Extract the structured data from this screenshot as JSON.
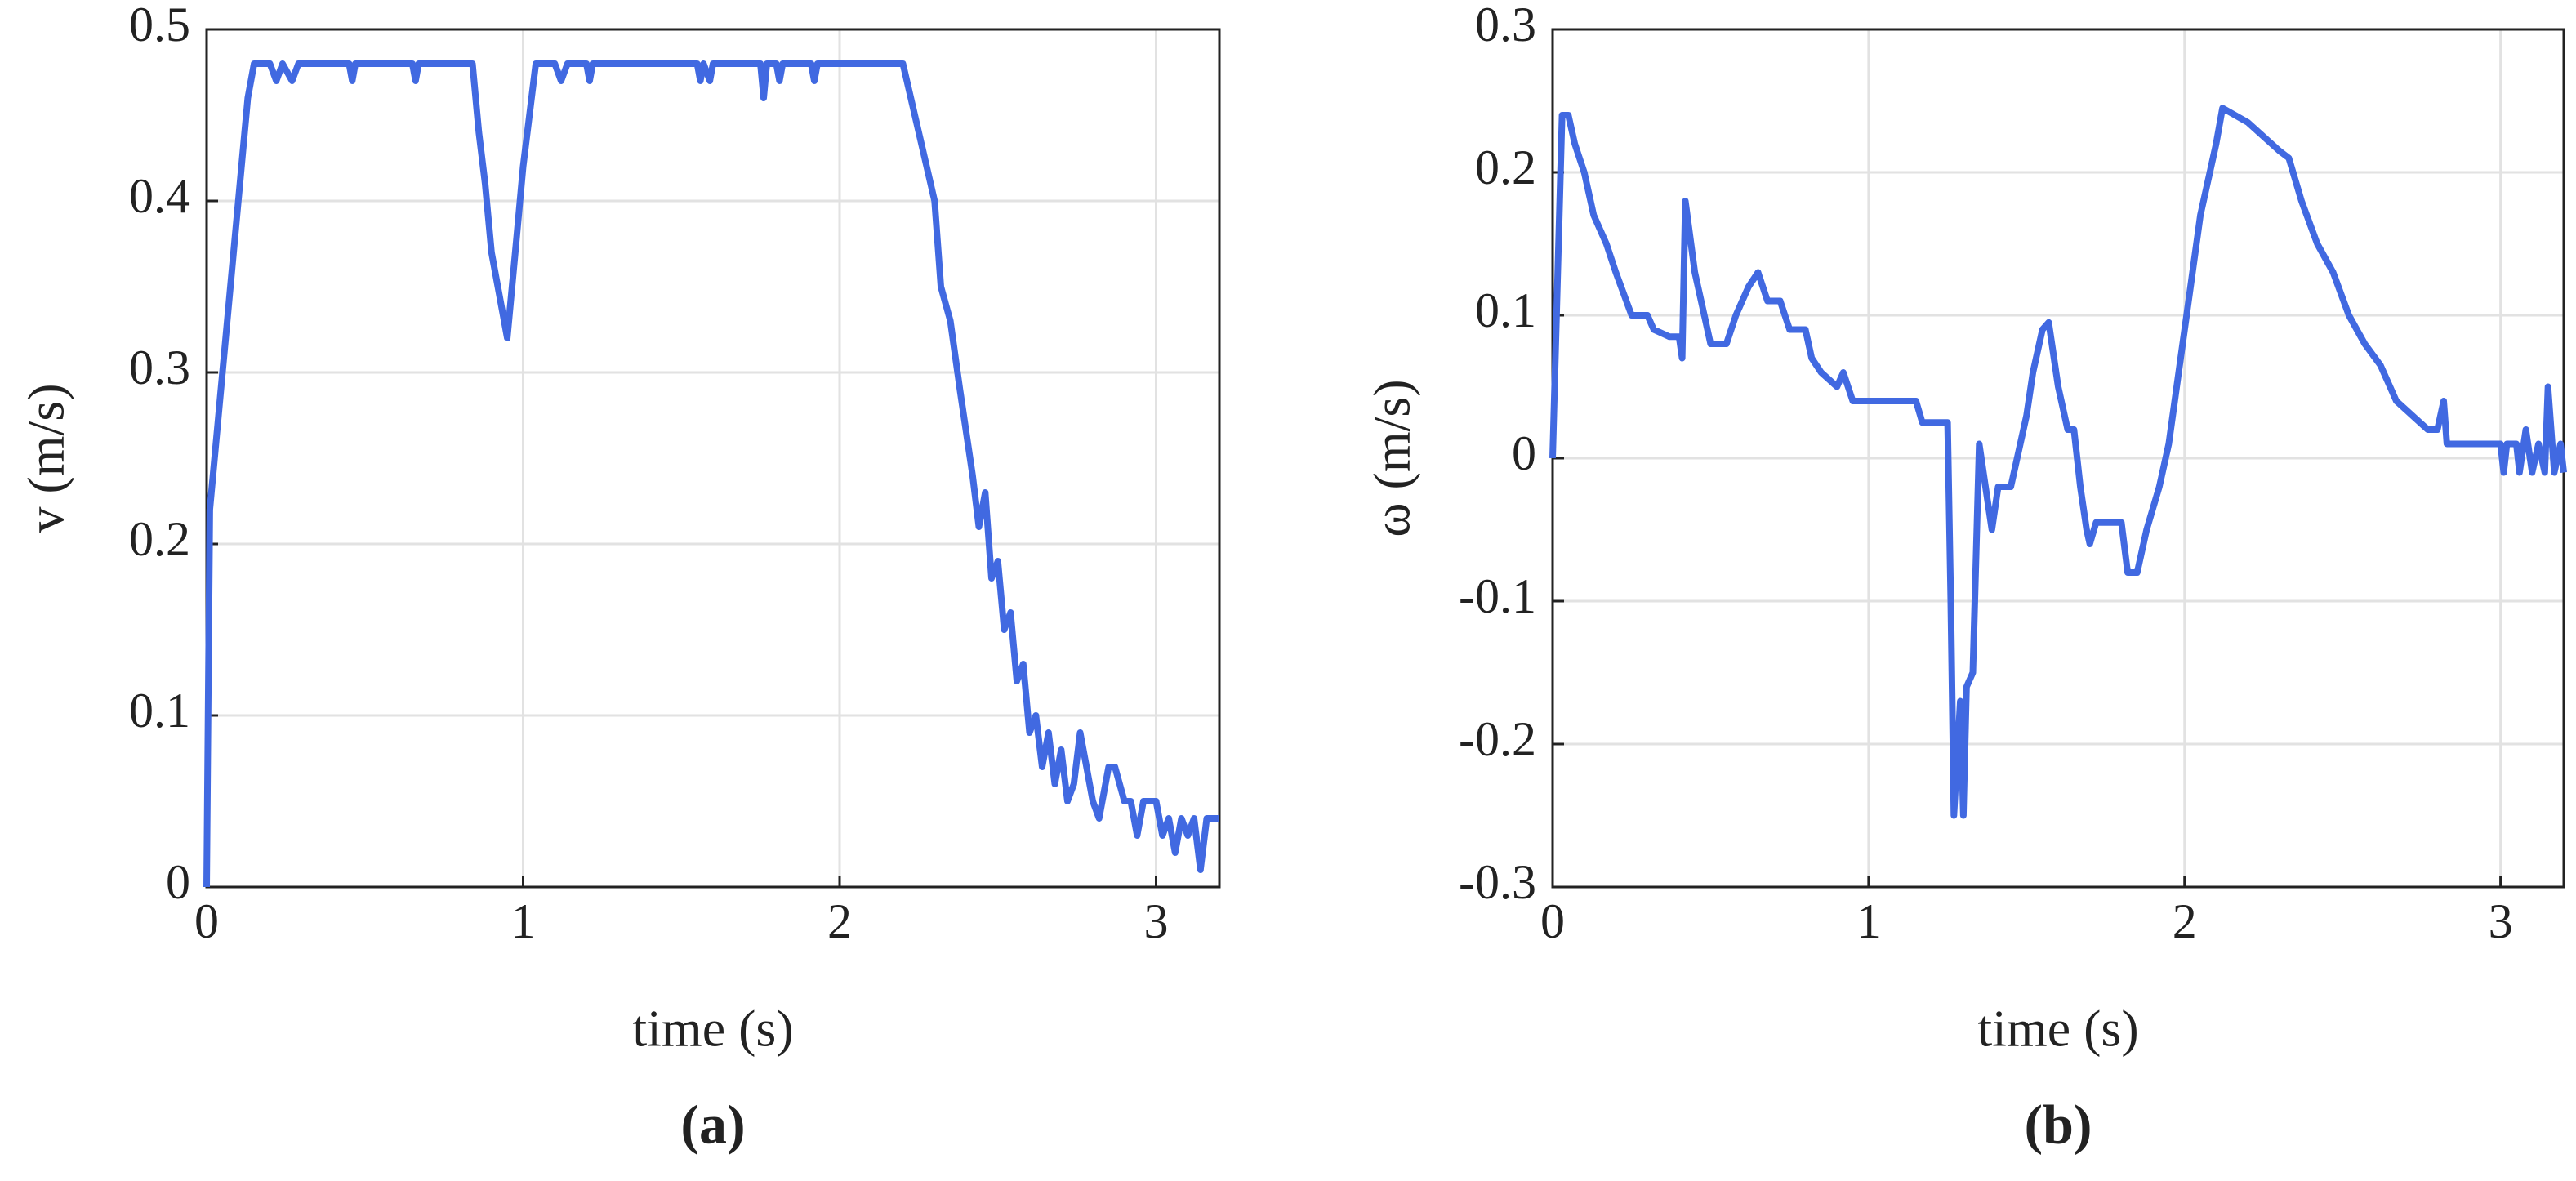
{
  "chart_data": [
    {
      "type": "line",
      "label": "(a)",
      "x_label": "time (s)",
      "y_label": "v (m/s)",
      "xlim": [
        0,
        3.2
      ],
      "ylim": [
        0,
        0.5
      ],
      "xticks": [
        0,
        1,
        2,
        3
      ],
      "yticks": [
        0,
        0.1,
        0.2,
        0.3,
        0.4,
        0.5
      ],
      "grid": true,
      "color": "#4169e1",
      "x": [
        0,
        0.01,
        0.05,
        0.1,
        0.13,
        0.15,
        0.2,
        0.22,
        0.24,
        0.27,
        0.29,
        0.45,
        0.46,
        0.47,
        0.65,
        0.66,
        0.67,
        0.84,
        0.86,
        0.88,
        0.9,
        0.93,
        0.95,
        0.98,
        1.0,
        1.04,
        1.1,
        1.12,
        1.14,
        1.2,
        1.21,
        1.22,
        1.55,
        1.56,
        1.57,
        1.59,
        1.6,
        1.75,
        1.76,
        1.77,
        1.8,
        1.81,
        1.82,
        1.91,
        1.92,
        1.93,
        2.2,
        2.25,
        2.3,
        2.32,
        2.35,
        2.38,
        2.42,
        2.44,
        2.46,
        2.48,
        2.5,
        2.52,
        2.54,
        2.56,
        2.58,
        2.6,
        2.62,
        2.64,
        2.66,
        2.68,
        2.7,
        2.72,
        2.74,
        2.76,
        2.78,
        2.8,
        2.82,
        2.85,
        2.87,
        2.9,
        2.92,
        2.94,
        2.96,
        3.0,
        3.02,
        3.04,
        3.06,
        3.08,
        3.1,
        3.12,
        3.14,
        3.16,
        3.2
      ],
      "values": [
        0,
        0.22,
        0.3,
        0.4,
        0.46,
        0.48,
        0.48,
        0.47,
        0.48,
        0.47,
        0.48,
        0.48,
        0.47,
        0.48,
        0.48,
        0.47,
        0.48,
        0.48,
        0.44,
        0.41,
        0.37,
        0.34,
        0.32,
        0.38,
        0.42,
        0.48,
        0.48,
        0.47,
        0.48,
        0.48,
        0.47,
        0.48,
        0.48,
        0.47,
        0.48,
        0.47,
        0.48,
        0.48,
        0.46,
        0.48,
        0.48,
        0.47,
        0.48,
        0.48,
        0.47,
        0.48,
        0.48,
        0.44,
        0.4,
        0.35,
        0.33,
        0.29,
        0.24,
        0.21,
        0.23,
        0.18,
        0.19,
        0.15,
        0.16,
        0.12,
        0.13,
        0.09,
        0.1,
        0.07,
        0.09,
        0.06,
        0.08,
        0.05,
        0.06,
        0.09,
        0.07,
        0.05,
        0.04,
        0.07,
        0.07,
        0.05,
        0.05,
        0.03,
        0.05,
        0.05,
        0.03,
        0.04,
        0.02,
        0.04,
        0.03,
        0.04,
        0.01,
        0.04,
        0.04
      ]
    },
    {
      "type": "line",
      "label": "(b)",
      "x_label": "time (s)",
      "y_label": "ω (m/s)",
      "xlim": [
        0,
        3.2
      ],
      "ylim": [
        -0.3,
        0.3
      ],
      "xticks": [
        0,
        1,
        2,
        3
      ],
      "yticks": [
        -0.3,
        -0.2,
        -0.1,
        0,
        0.1,
        0.2,
        0.3
      ],
      "grid": true,
      "color": "#4169e1",
      "x": [
        0,
        0.03,
        0.05,
        0.07,
        0.1,
        0.13,
        0.17,
        0.2,
        0.25,
        0.3,
        0.32,
        0.37,
        0.4,
        0.41,
        0.42,
        0.45,
        0.48,
        0.5,
        0.55,
        0.58,
        0.62,
        0.65,
        0.68,
        0.72,
        0.75,
        0.8,
        0.82,
        0.85,
        0.9,
        0.92,
        0.95,
        1.15,
        1.17,
        1.25,
        1.26,
        1.27,
        1.29,
        1.3,
        1.31,
        1.33,
        1.35,
        1.37,
        1.39,
        1.41,
        1.45,
        1.48,
        1.5,
        1.52,
        1.55,
        1.57,
        1.6,
        1.63,
        1.65,
        1.67,
        1.69,
        1.7,
        1.72,
        1.8,
        1.82,
        1.85,
        1.88,
        1.92,
        1.95,
        2.0,
        2.05,
        2.08,
        2.1,
        2.12,
        2.2,
        2.3,
        2.33,
        2.37,
        2.42,
        2.47,
        2.52,
        2.57,
        2.62,
        2.67,
        2.72,
        2.77,
        2.8,
        2.82,
        2.83,
        3.0,
        3.01,
        3.02,
        3.05,
        3.06,
        3.08,
        3.1,
        3.12,
        3.14,
        3.15,
        3.17,
        3.19,
        3.2
      ],
      "values": [
        0,
        0.24,
        0.24,
        0.22,
        0.2,
        0.17,
        0.15,
        0.13,
        0.1,
        0.1,
        0.09,
        0.085,
        0.085,
        0.07,
        0.18,
        0.13,
        0.1,
        0.08,
        0.08,
        0.1,
        0.12,
        0.13,
        0.11,
        0.11,
        0.09,
        0.09,
        0.07,
        0.06,
        0.05,
        0.06,
        0.04,
        0.04,
        0.025,
        0.025,
        -0.1,
        -0.25,
        -0.17,
        -0.25,
        -0.16,
        -0.15,
        0.01,
        -0.02,
        -0.05,
        -0.02,
        -0.02,
        0.01,
        0.03,
        0.06,
        0.09,
        0.095,
        0.05,
        0.02,
        0.02,
        -0.02,
        -0.05,
        -0.06,
        -0.045,
        -0.045,
        -0.08,
        -0.08,
        -0.05,
        -0.02,
        0.01,
        0.09,
        0.17,
        0.2,
        0.22,
        0.245,
        0.235,
        0.215,
        0.21,
        0.18,
        0.15,
        0.13,
        0.1,
        0.08,
        0.065,
        0.04,
        0.03,
        0.02,
        0.02,
        0.04,
        0.01,
        0.01,
        -0.01,
        0.01,
        0.01,
        -0.01,
        0.02,
        -0.01,
        0.01,
        -0.01,
        0.05,
        -0.01,
        0.01,
        -0.01
      ]
    }
  ]
}
